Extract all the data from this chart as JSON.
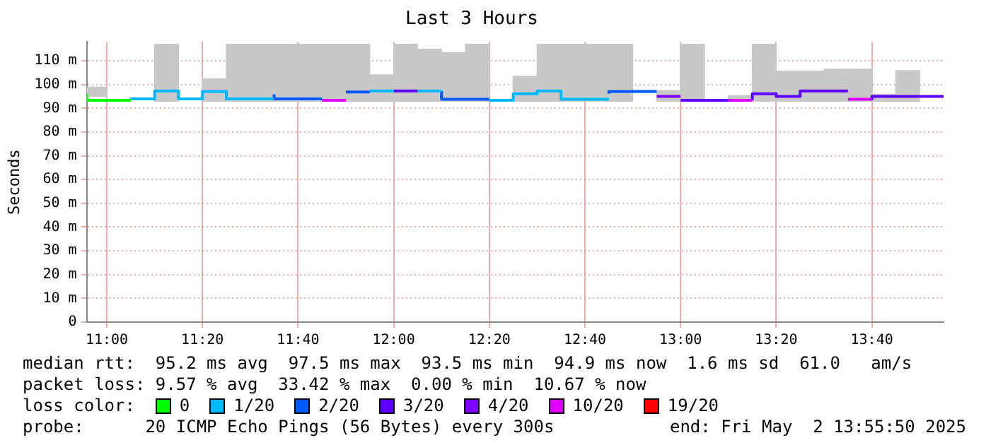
{
  "chart_data": {
    "type": "step",
    "title": "Last 3 Hours",
    "ylabel": "Seconds",
    "legend_title": "loss color:",
    "legend": "bottom",
    "grid": true,
    "xlim": [
      10.93,
      13.9167
    ],
    "xticks": [
      {
        "value": 11,
        "label": "11:00"
      },
      {
        "value": 11.3333,
        "label": "11:20"
      },
      {
        "value": 11.6667,
        "label": "11:40"
      },
      {
        "value": 12,
        "label": "12:00"
      },
      {
        "value": 12.3333,
        "label": "12:20"
      },
      {
        "value": 12.6667,
        "label": "12:40"
      },
      {
        "value": 13,
        "label": "13:00"
      },
      {
        "value": 13.3333,
        "label": "13:20"
      },
      {
        "value": 13.6667,
        "label": "13:40"
      }
    ],
    "ylim": [
      0,
      118
    ],
    "yticks": [
      0,
      {
        "value": 10,
        "label": "10 m"
      },
      {
        "value": 20,
        "label": "20 m"
      },
      {
        "value": 30,
        "label": "30 m"
      },
      {
        "value": 40,
        "label": "40 m"
      },
      {
        "value": 50,
        "label": "50 m"
      },
      {
        "value": 60,
        "label": "60 m"
      },
      {
        "value": 70,
        "label": "70 m"
      },
      {
        "value": 80,
        "label": "80 m"
      },
      {
        "value": 90,
        "label": "90 m"
      },
      {
        "value": 100,
        "label": "100 m"
      },
      {
        "value": 110,
        "label": "110 m"
      }
    ],
    "series": [
      {
        "type": "bar",
        "color": "#c8c8c8",
        "x": [
          10.9583,
          11.2083,
          11.375,
          11.4583,
          11.5417,
          11.625,
          11.7083,
          11.7917,
          11.875,
          11.9583,
          12.0417,
          12.125,
          12.2083,
          12.2917,
          12.4583,
          12.5417,
          12.625,
          12.7083,
          12.7917,
          12.9583,
          13.0417,
          13.2083,
          13.2917,
          13.375,
          13.4583,
          13.5417,
          13.625,
          13.7083,
          13.7917
        ],
        "base": [
          95,
          93,
          93,
          93,
          93,
          93,
          93,
          93,
          93,
          93,
          93,
          93,
          93,
          93,
          93,
          93,
          93,
          93,
          93,
          93,
          93,
          93,
          93,
          93,
          93,
          93,
          93,
          93,
          93
        ],
        "values": [
          3.9,
          24,
          9.4,
          24,
          24,
          24,
          24,
          24,
          24,
          11.1,
          24,
          21.9,
          20.5,
          24,
          10.5,
          24,
          24,
          24,
          24,
          4.5,
          24,
          2.3,
          24,
          12.7,
          12.7,
          13.5,
          13.5,
          2.9,
          12.9
        ]
      },
      {
        "name": "0",
        "color": "#00ff00",
        "x": [
          10.93,
          11,
          11.0833
        ],
        "values": [
          96.1,
          93.4,
          93.4
        ]
      },
      {
        "name": "1/20",
        "color": "#00b8ff",
        "x": [
          11.0833,
          11.1667,
          11.25,
          11.3333,
          11.4167,
          11.5,
          11.5833,
          null,
          11.9167,
          12,
          null,
          12.0833,
          12.1667,
          null,
          12.3333,
          12.4167,
          12.5,
          12.5833,
          12.6667,
          12.75
        ],
        "values": [
          93.4,
          94.0,
          97.3,
          94.0,
          97.1,
          94.0,
          94.0,
          null,
          97.3,
          97.3,
          null,
          97.3,
          97.3,
          null,
          93.4,
          93.4,
          96.1,
          97.3,
          93.8,
          93.8
        ]
      },
      {
        "name": "2/20",
        "color": "#0059ff",
        "x": [
          11.5833,
          11.6667,
          11.75,
          null,
          11.8333,
          11.9167,
          null,
          12.1667,
          12.25,
          12.3333,
          null,
          12.75,
          12.8333,
          12.9167
        ],
        "values": [
          95.9,
          94.0,
          94.0,
          null,
          96.9,
          96.9,
          null,
          97.3,
          93.8,
          93.8,
          null,
          96.1,
          97.1,
          97.1
        ]
      },
      {
        "name": "3/20",
        "color": "#5e00ff",
        "x": [
          12,
          12.0833,
          null,
          13,
          13.0833,
          13.1667,
          null,
          13.25,
          13.3333,
          13.4167,
          13.5,
          13.5833,
          null,
          13.6667,
          13.75,
          13.8333,
          13.9167
        ],
        "values": [
          97.3,
          97.3,
          null,
          93.4,
          93.4,
          93.4,
          null,
          93.4,
          96.1,
          95.0,
          97.3,
          97.3,
          null,
          93.4,
          95.0,
          95.0,
          95.0
        ]
      },
      {
        "name": "4/20",
        "color": "#7e00ff",
        "x": [
          12.9167,
          13
        ],
        "values": [
          95.0,
          95.0
        ]
      },
      {
        "name": "10/20",
        "color": "#dd00ff",
        "x": [
          11.75,
          11.8333,
          null,
          13.1667,
          13.25,
          null,
          13.5833,
          13.6667
        ],
        "values": [
          93.4,
          93.4,
          null,
          93.4,
          93.4,
          null,
          93.8,
          93.8
        ]
      },
      {
        "name": "19/20",
        "color": "#ff0000"
      }
    ],
    "annotations": [
      "median rtt:  95.2 ms avg  97.5 ms max  93.5 ms min  94.9 ms now  1.6 ms sd  61.0   am/s",
      "packet loss: 9.57 % avg  33.42 % max  0.00 % min  10.67 % now",
      "probe:      20 ICMP Echo Pings (56 Bytes) every 300s",
      "end: Fri May  2 13:55:50 2025"
    ]
  }
}
